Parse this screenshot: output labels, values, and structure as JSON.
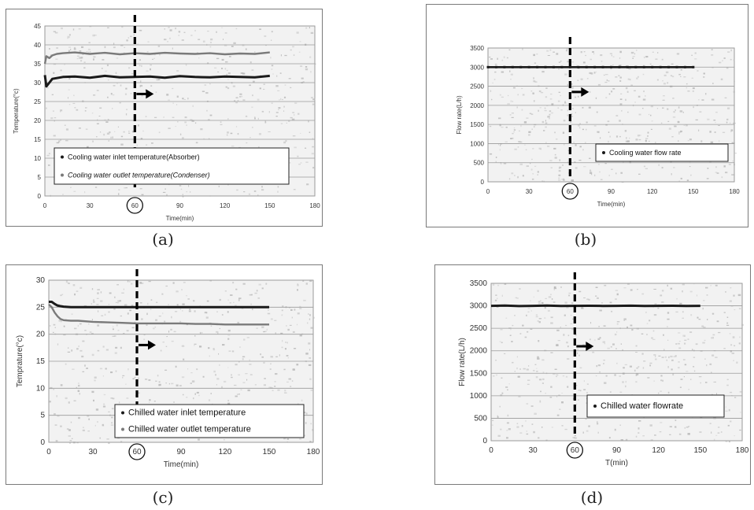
{
  "panels": [
    {
      "label": "(a)"
    },
    {
      "label": "(b)"
    },
    {
      "label": "(c)"
    },
    {
      "label": "(d)"
    }
  ],
  "colors": {
    "series_dark": "#1a1a1a",
    "series_gray": "#7a7a7a",
    "grid": "#9a9a9a",
    "noise": "#b5b5b5",
    "plot_bg": "#f2f2f2",
    "marker": "#000000"
  },
  "chart_data": [
    {
      "type": "line",
      "xlabel": "Time(min)",
      "ylabel": "Temperature(°c)",
      "x_ticks": [
        "0",
        "30",
        "60",
        "90",
        "120",
        "150",
        "180"
      ],
      "y_ticks": [
        "0",
        "5",
        "10",
        "15",
        "20",
        "25",
        "30",
        "35",
        "40",
        "45"
      ],
      "xlim": [
        0,
        180
      ],
      "ylim": [
        0,
        45
      ],
      "grid": true,
      "legend_position": "bottom-left",
      "highlighted_x_tick": "60",
      "marker_x": 60,
      "arrow_y": 27,
      "series": [
        {
          "name": "Cooling water inlet temperature(Absorber)",
          "color": "#1a1a1a",
          "x": [
            0,
            1,
            3,
            5,
            8,
            12,
            20,
            30,
            40,
            50,
            60,
            70,
            80,
            90,
            100,
            110,
            120,
            130,
            140,
            150
          ],
          "y": [
            32,
            29,
            30,
            31,
            31.2,
            31.5,
            31.6,
            31.3,
            31.8,
            31.4,
            31.5,
            31.6,
            31.3,
            31.7,
            31.5,
            31.4,
            31.6,
            31.5,
            31.4,
            31.8
          ]
        },
        {
          "name": "Cooling water outlet temperature(Condenser)",
          "color": "#7a7a7a",
          "x": [
            0,
            1,
            3,
            5,
            8,
            12,
            20,
            30,
            40,
            50,
            60,
            70,
            80,
            90,
            100,
            110,
            120,
            130,
            140,
            150
          ],
          "y": [
            35,
            37,
            36.5,
            37.2,
            37.6,
            37.8,
            38,
            37.6,
            37.9,
            37.5,
            37.8,
            37.6,
            37.9,
            37.7,
            37.6,
            37.8,
            37.5,
            37.7,
            37.6,
            38
          ]
        }
      ]
    },
    {
      "type": "scatter",
      "xlabel": "Time(min)",
      "ylabel": "Flow rate(L/h)",
      "x_ticks": [
        "0",
        "30",
        "60",
        "90",
        "120",
        "150",
        "180"
      ],
      "y_ticks": [
        "0",
        "500",
        "1000",
        "1500",
        "2000",
        "2500",
        "3000",
        "3500"
      ],
      "xlim": [
        0,
        180
      ],
      "ylim": [
        0,
        3500
      ],
      "grid": true,
      "legend_position": "bottom-right",
      "highlighted_x_tick": "60",
      "marker_x": 60,
      "arrow_y": 2350,
      "series": [
        {
          "name": "Cooling water flow rate",
          "color": "#1a1a1a",
          "x": [
            0,
            2,
            4,
            6,
            8,
            10,
            12,
            14,
            16,
            18,
            20,
            22,
            24,
            26,
            28,
            30,
            32,
            34,
            36,
            38,
            40,
            42,
            44,
            46,
            48,
            50,
            52,
            54,
            56,
            58,
            60,
            62,
            64,
            66,
            68,
            70,
            72,
            74,
            76,
            78,
            80,
            82,
            84,
            86,
            88,
            90,
            92,
            94,
            96,
            98,
            100,
            102,
            104,
            106,
            108,
            110,
            112,
            114,
            116,
            118,
            120,
            122,
            124,
            126,
            128,
            130,
            132,
            134,
            136,
            138,
            140,
            142,
            144,
            146,
            148,
            150
          ],
          "y": [
            3000,
            3000,
            3000,
            3000,
            3000,
            3000,
            3000,
            3000,
            3000,
            3000,
            3000,
            3000,
            3000,
            3000,
            3000,
            3000,
            3000,
            3000,
            3000,
            3000,
            3000,
            3000,
            3000,
            3000,
            3000,
            3000,
            3000,
            3000,
            3000,
            3000,
            3000,
            3000,
            3000,
            3000,
            3000,
            3000,
            3000,
            3000,
            3000,
            3000,
            3000,
            3000,
            3000,
            3000,
            3000,
            3000,
            3000,
            3000,
            3000,
            3000,
            3000,
            3000,
            3000,
            3000,
            3000,
            3000,
            3000,
            3000,
            3000,
            3000,
            3000,
            3000,
            3000,
            3000,
            3000,
            3000,
            3000,
            3000,
            3000,
            3000,
            3000,
            3000,
            3000,
            3000,
            3000,
            3000
          ]
        }
      ]
    },
    {
      "type": "line",
      "xlabel": "Time(min)",
      "ylabel": "Temprature(°c)",
      "x_ticks": [
        "0",
        "30",
        "60",
        "90",
        "120",
        "150",
        "180"
      ],
      "y_ticks": [
        "0",
        "5",
        "10",
        "15",
        "20",
        "25",
        "30"
      ],
      "xlim": [
        0,
        180
      ],
      "ylim": [
        0,
        30
      ],
      "grid": true,
      "legend_position": "bottom-right",
      "highlighted_x_tick": "60",
      "marker_x": 60,
      "arrow_y": 18,
      "series": [
        {
          "name": "Chilled water inlet temperature",
          "color": "#1a1a1a",
          "x": [
            0,
            2,
            4,
            6,
            8,
            10,
            15,
            20,
            30,
            40,
            50,
            60,
            70,
            80,
            90,
            100,
            110,
            120,
            130,
            140,
            150
          ],
          "y": [
            26,
            26,
            25.6,
            25.3,
            25.2,
            25.1,
            25,
            25,
            25,
            25,
            25,
            25,
            25,
            25,
            25,
            25,
            25,
            25,
            25,
            25,
            25
          ]
        },
        {
          "name": "Chilled water outlet temperature",
          "color": "#7a7a7a",
          "x": [
            0,
            2,
            4,
            6,
            8,
            10,
            15,
            20,
            30,
            40,
            50,
            60,
            70,
            80,
            90,
            100,
            110,
            120,
            130,
            140,
            150
          ],
          "y": [
            25.5,
            25,
            24,
            23.3,
            22.8,
            22.6,
            22.5,
            22.5,
            22.3,
            22.2,
            22.1,
            22,
            22,
            22,
            22,
            21.9,
            21.9,
            21.8,
            21.8,
            21.8,
            21.8
          ]
        }
      ]
    },
    {
      "type": "line",
      "xlabel": "T(min)",
      "ylabel": "Flow rate(L/h)",
      "x_ticks": [
        "0",
        "30",
        "60",
        "90",
        "120",
        "150",
        "180"
      ],
      "y_ticks": [
        "0",
        "500",
        "1000",
        "1500",
        "2000",
        "2500",
        "3000",
        "3500"
      ],
      "xlim": [
        0,
        180
      ],
      "ylim": [
        0,
        3500
      ],
      "grid": true,
      "legend_position": "bottom-right",
      "highlighted_x_tick": "60",
      "marker_x": 60,
      "arrow_y": 2100,
      "series": [
        {
          "name": "Chilled water flowrate",
          "color": "#1a1a1a",
          "x": [
            0,
            10,
            20,
            30,
            40,
            50,
            60,
            70,
            80,
            90,
            100,
            110,
            120,
            130,
            140,
            150
          ],
          "y": [
            3000,
            3005,
            2995,
            3000,
            3005,
            2998,
            3000,
            3002,
            2998,
            3000,
            3003,
            2997,
            3000,
            3002,
            2998,
            3000
          ]
        }
      ]
    }
  ]
}
